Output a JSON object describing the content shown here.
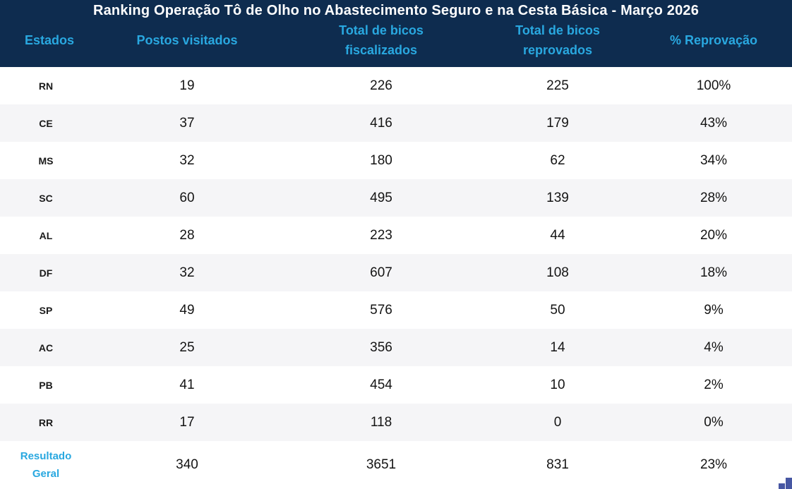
{
  "title": "Ranking Operação Tô de Olho no Abastecimento Seguro e na Cesta Básica - Março 2026",
  "columns": [
    "Estados",
    "Postos visitados",
    "Total de bicos fiscalizados",
    "Total de bicos reprovados",
    "% Reprovação"
  ],
  "rows": [
    {
      "estado": "RN",
      "postos": "19",
      "fiscalizados": "226",
      "reprovados": "225",
      "reprovacao": "100%"
    },
    {
      "estado": "CE",
      "postos": "37",
      "fiscalizados": "416",
      "reprovados": "179",
      "reprovacao": "43%"
    },
    {
      "estado": "MS",
      "postos": "32",
      "fiscalizados": "180",
      "reprovados": "62",
      "reprovacao": "34%"
    },
    {
      "estado": "SC",
      "postos": "60",
      "fiscalizados": "495",
      "reprovados": "139",
      "reprovacao": "28%"
    },
    {
      "estado": "AL",
      "postos": "28",
      "fiscalizados": "223",
      "reprovados": "44",
      "reprovacao": "20%"
    },
    {
      "estado": "DF",
      "postos": "32",
      "fiscalizados": "607",
      "reprovados": "108",
      "reprovacao": "18%"
    },
    {
      "estado": "SP",
      "postos": "49",
      "fiscalizados": "576",
      "reprovados": "50",
      "reprovacao": "9%"
    },
    {
      "estado": "AC",
      "postos": "25",
      "fiscalizados": "356",
      "reprovados": "14",
      "reprovacao": "4%"
    },
    {
      "estado": "PB",
      "postos": "41",
      "fiscalizados": "454",
      "reprovados": "10",
      "reprovacao": "2%"
    },
    {
      "estado": "RR",
      "postos": "17",
      "fiscalizados": "118",
      "reprovados": "0",
      "reprovacao": "0%"
    }
  ],
  "total_row": {
    "estado": "Resultado Geral",
    "postos": "340",
    "fiscalizados": "3651",
    "reprovados": "831",
    "reprovacao": "23%"
  },
  "icons": {
    "corner": "bar-chart-corner-icon"
  },
  "colors": {
    "header_bg": "#0e2c4f",
    "accent_cyan": "#29a8e0",
    "row_alt_bg": "#f5f5f7",
    "row_bg": "#ffffff",
    "body_text": "#141414",
    "corner_icon_blue": "#4757a3"
  },
  "chart_data": {
    "type": "table",
    "title": "Ranking Operação Tô de Olho no Abastecimento Seguro e na Cesta Básica - Março 2026",
    "columns": [
      "Estados",
      "Postos visitados",
      "Total de bicos fiscalizados",
      "Total de bicos reprovados",
      "% Reprovação"
    ],
    "rows": [
      [
        "RN",
        19,
        226,
        225,
        "100%"
      ],
      [
        "CE",
        37,
        416,
        179,
        "43%"
      ],
      [
        "MS",
        32,
        180,
        62,
        "34%"
      ],
      [
        "SC",
        60,
        495,
        139,
        "28%"
      ],
      [
        "AL",
        28,
        223,
        44,
        "20%"
      ],
      [
        "DF",
        32,
        607,
        108,
        "18%"
      ],
      [
        "SP",
        49,
        576,
        50,
        "9%"
      ],
      [
        "AC",
        25,
        356,
        14,
        "4%"
      ],
      [
        "PB",
        41,
        454,
        10,
        "2%"
      ],
      [
        "RR",
        17,
        118,
        0,
        "0%"
      ]
    ],
    "total_row": [
      "Resultado Geral",
      340,
      3651,
      831,
      "23%"
    ],
    "layout": "alternating row shading, dark navy header band, cyan column headers"
  }
}
